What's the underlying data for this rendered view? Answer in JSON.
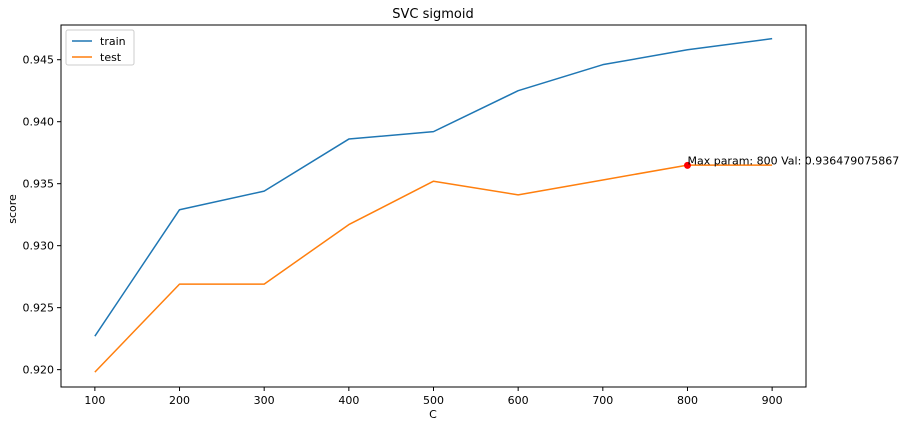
{
  "chart_data": {
    "type": "line",
    "title": "SVC sigmoid",
    "xlabel": "C",
    "ylabel": "score",
    "x": [
      100,
      200,
      300,
      400,
      500,
      600,
      700,
      800,
      900
    ],
    "series": [
      {
        "name": "train",
        "color": "#1f77b4",
        "values": [
          0.9227,
          0.9329,
          0.9344,
          0.9386,
          0.9392,
          0.9425,
          0.9446,
          0.9458,
          0.9467
        ]
      },
      {
        "name": "test",
        "color": "#ff7f0e",
        "values": [
          0.9198,
          0.9269,
          0.9269,
          0.9317,
          0.9352,
          0.9341,
          0.9353,
          0.9365,
          0.9365
        ]
      }
    ],
    "xlim": [
      60,
      940
    ],
    "ylim": [
      0.9186,
      0.9478
    ],
    "xticks": [
      100,
      200,
      300,
      400,
      500,
      600,
      700,
      800,
      900
    ],
    "yticks": [
      0.92,
      0.925,
      0.93,
      0.935,
      0.94,
      0.945
    ],
    "ytick_labels": [
      "0.920",
      "0.925",
      "0.930",
      "0.935",
      "0.940",
      "0.945"
    ],
    "marker": {
      "x": 800,
      "y": 0.936479075867,
      "color": "#ff0000",
      "label": "Max param: 800 Val: 0.936479075867"
    },
    "legend": "top-left",
    "grid": false
  }
}
